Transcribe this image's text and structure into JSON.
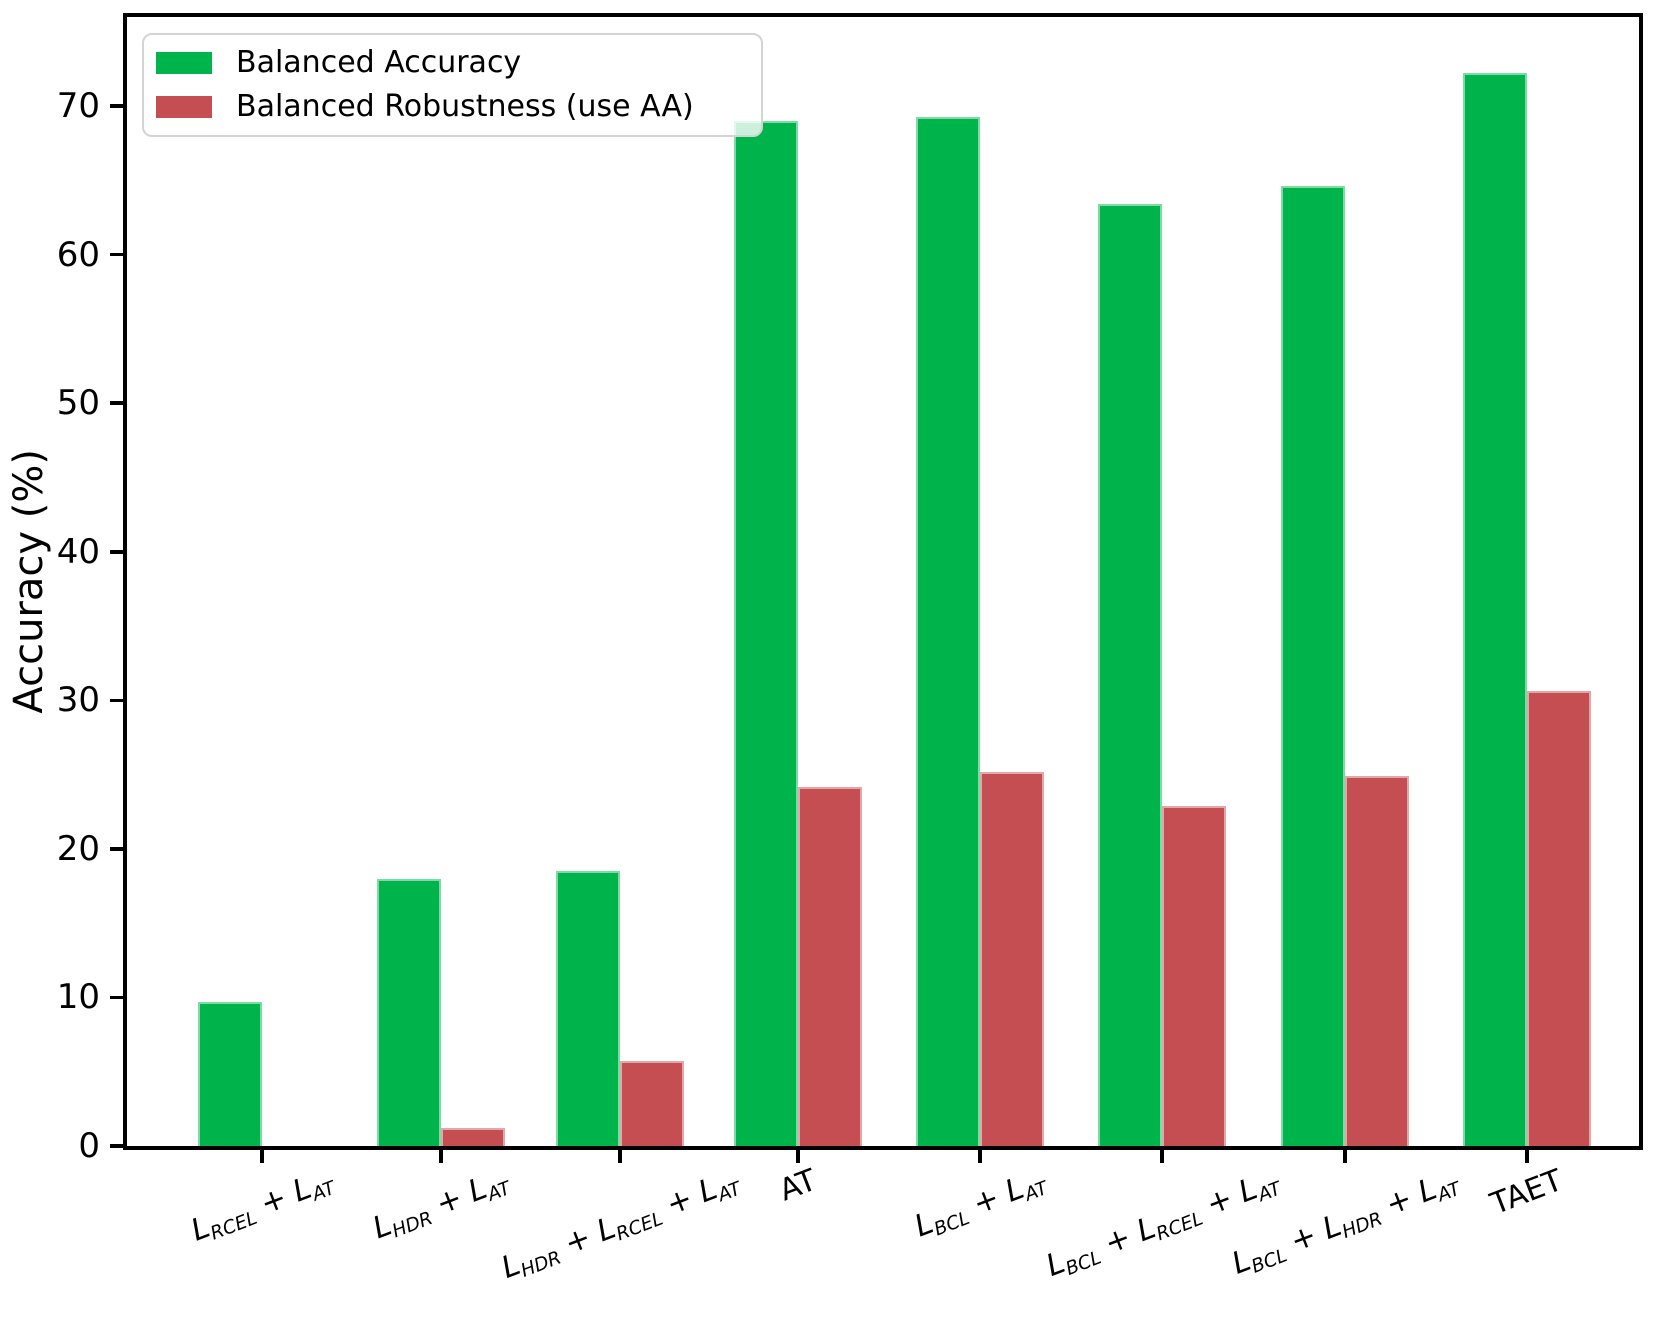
{
  "chart_data": {
    "type": "bar",
    "title": "",
    "ylabel": "Accuracy (%)",
    "ylim": [
      0,
      76
    ],
    "yticks": [
      0,
      10,
      20,
      30,
      40,
      50,
      60,
      70
    ],
    "grid": false,
    "legend_position": "upper left",
    "categories": [
      "L_{RCEL} + L_{AT}",
      "L_{HDR} + L_{AT}",
      "L_{HDR} + L_{RCEL} + L_{AT}",
      "AT",
      "L_{BCL} + L_{AT}",
      "L_{BCL} + L_{RCEL} + L_{AT}",
      "L_{BCL} + L_{HDR} + L_{AT}",
      "TAET"
    ],
    "series": [
      {
        "name": "Balanced Accuracy",
        "color": "#00b44c",
        "values": [
          9.7,
          18.0,
          18.5,
          69.0,
          69.3,
          63.4,
          64.6,
          72.2
        ]
      },
      {
        "name": "Balanced Robustness (use AA)",
        "color": "#c44e52",
        "values": [
          0.0,
          1.2,
          5.7,
          24.2,
          25.2,
          22.9,
          24.9,
          30.6
        ]
      }
    ]
  }
}
